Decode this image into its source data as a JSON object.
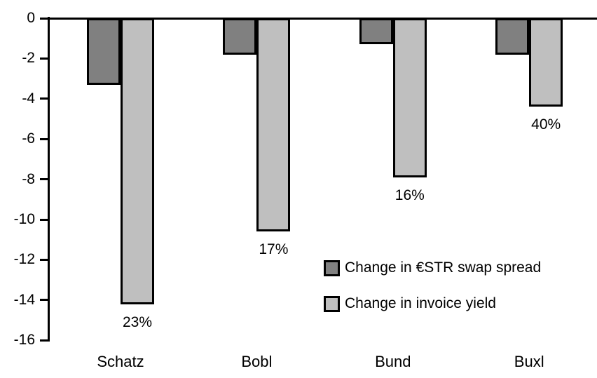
{
  "chart_data": {
    "type": "bar",
    "title": "",
    "categories": [
      "Schatz",
      "Bobl",
      "Bund",
      "Buxl"
    ],
    "series": [
      {
        "name": "Change in €STR swap spread",
        "color": "#808080",
        "values": [
          -3.3,
          -1.8,
          -1.3,
          -1.8
        ]
      },
      {
        "name": "Change in invoice yield",
        "color": "#bfbfbf",
        "values": [
          -14.2,
          -10.6,
          -7.9,
          -4.4
        ]
      }
    ],
    "bar_labels": {
      "series_name": "Change in invoice yield",
      "values": [
        "23%",
        "17%",
        "16%",
        "40%"
      ]
    },
    "ylim": [
      -16,
      0
    ],
    "yticks": [
      0,
      -2,
      -4,
      -6,
      -8,
      -10,
      -12,
      -14,
      -16
    ],
    "xlabel": "",
    "ylabel": "",
    "grid": false,
    "legend_position": "inside-right-middle",
    "axis_color": "#000000",
    "bar_border_color": "#000000",
    "background": "#ffffff"
  }
}
